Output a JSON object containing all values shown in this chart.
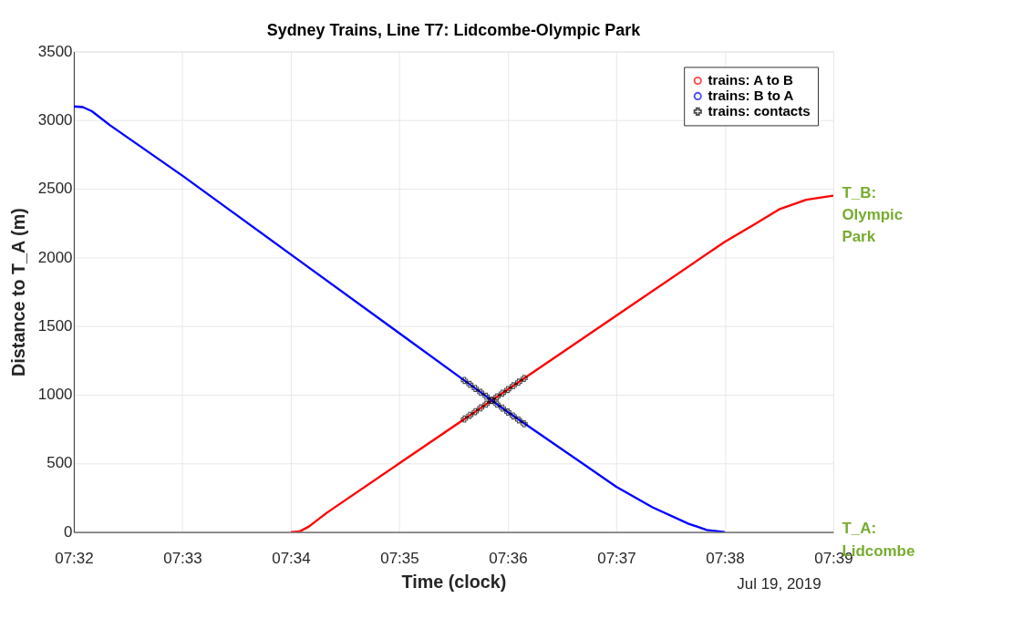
{
  "chart_data": {
    "type": "line",
    "title": "Sydney Trains, Line T7: Lidcombe-Olympic Park",
    "xlabel": "Time (clock)",
    "ylabel": "Distance to T_A (m)",
    "xlim": [
      "2019-07-19T07:32:00",
      "2019-07-19T07:39:00"
    ],
    "xticks": [
      {
        "value": "2019-07-19T07:32:00",
        "label": "07:32"
      },
      {
        "value": "2019-07-19T07:33:00",
        "label": "07:33"
      },
      {
        "value": "2019-07-19T07:34:00",
        "label": "07:34"
      },
      {
        "value": "2019-07-19T07:35:00",
        "label": "07:35"
      },
      {
        "value": "2019-07-19T07:36:00",
        "label": "07:36"
      },
      {
        "value": "2019-07-19T07:37:00",
        "label": "07:37"
      },
      {
        "value": "2019-07-19T07:38:00",
        "label": "07:38"
      },
      {
        "value": "2019-07-19T07:39:00",
        "label": "07:39"
      }
    ],
    "ylim": [
      0,
      3500
    ],
    "yticks": [
      0,
      500,
      1000,
      1500,
      2000,
      2500,
      3000,
      3500
    ],
    "grid": true,
    "legend": "top right",
    "series": [
      {
        "name": "trains: A to B",
        "color": "#ff0000",
        "x": [
          "2019-07-19T07:34:00",
          "2019-07-19T07:34:05",
          "2019-07-19T07:34:10",
          "2019-07-19T07:34:20",
          "2019-07-19T07:35:00",
          "2019-07-19T07:36:00",
          "2019-07-19T07:37:00",
          "2019-07-19T07:38:00",
          "2019-07-19T07:38:15",
          "2019-07-19T07:38:30",
          "2019-07-19T07:38:45",
          "2019-07-19T07:39:00"
        ],
        "values": [
          0,
          5,
          40,
          141,
          500,
          1038,
          1576,
          2114,
          2230,
          2350,
          2420,
          2450
        ]
      },
      {
        "name": "trains: B to A",
        "color": "#0000ff",
        "x": [
          "2019-07-19T07:32:00",
          "2019-07-19T07:32:05",
          "2019-07-19T07:32:10",
          "2019-07-19T07:32:20",
          "2019-07-19T07:33:00",
          "2019-07-19T07:34:00",
          "2019-07-19T07:35:00",
          "2019-07-19T07:36:00",
          "2019-07-19T07:37:00",
          "2019-07-19T07:37:20",
          "2019-07-19T07:37:40",
          "2019-07-19T07:37:50",
          "2019-07-19T07:38:00"
        ],
        "values": [
          3100,
          3095,
          3065,
          2963,
          2596,
          2022,
          1448,
          874,
          330,
          180,
          60,
          15,
          0
        ]
      },
      {
        "name": "trains: contacts",
        "color": "#000000",
        "type": "scatter",
        "marker": "cross",
        "x": [
          "2019-07-19T07:35:36",
          "2019-07-19T07:35:39",
          "2019-07-19T07:35:42",
          "2019-07-19T07:35:45",
          "2019-07-19T07:35:48",
          "2019-07-19T07:35:51",
          "2019-07-19T07:35:54",
          "2019-07-19T07:35:57",
          "2019-07-19T07:36:00",
          "2019-07-19T07:36:03",
          "2019-07-19T07:36:06",
          "2019-07-19T07:36:09",
          "2019-07-19T07:35:36",
          "2019-07-19T07:35:39",
          "2019-07-19T07:35:42",
          "2019-07-19T07:35:45",
          "2019-07-19T07:35:48",
          "2019-07-19T07:35:51",
          "2019-07-19T07:35:54",
          "2019-07-19T07:35:57",
          "2019-07-19T07:36:00",
          "2019-07-19T07:36:03",
          "2019-07-19T07:36:06",
          "2019-07-19T07:36:09"
        ],
        "values": [
          823,
          850,
          877,
          904,
          931,
          958,
          985,
          1011,
          1038,
          1065,
          1092,
          1119,
          1104,
          1075,
          1046,
          1017,
          989,
          960,
          931,
          903,
          874,
          845,
          817,
          788
        ]
      }
    ],
    "annotations": [
      "Jul 19, 2019",
      {
        "text": "T_B: Olympic Park",
        "x": "2019-07-19T07:39:00",
        "y": 2450
      },
      "T_A: Lidcombe"
    ]
  }
}
